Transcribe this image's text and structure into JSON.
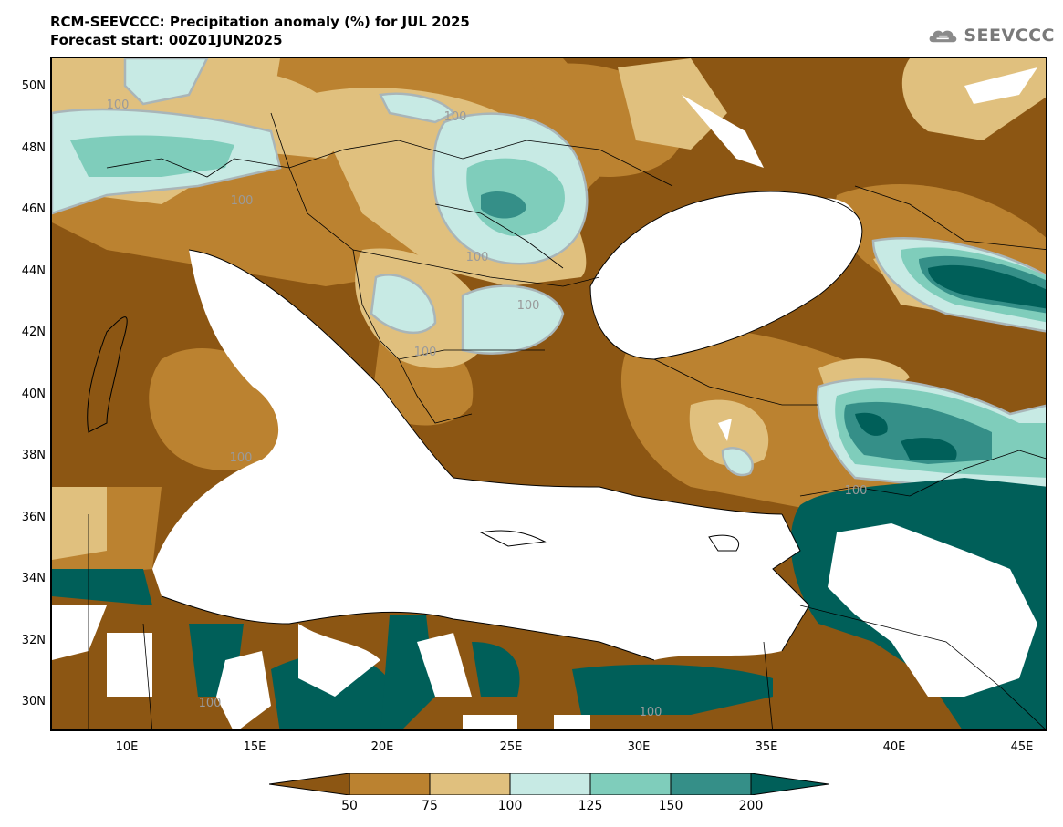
{
  "header": {
    "title": "RCM-SEEVCCC: Precipitation anomaly (%) for JUL 2025",
    "subtitle": "Forecast start: 00Z01JUN2025",
    "logo_text": "SEEVCCC"
  },
  "map": {
    "lat_labels": [
      "50N",
      "48N",
      "46N",
      "44N",
      "42N",
      "40N",
      "38N",
      "36N",
      "34N",
      "32N",
      "30N"
    ],
    "lon_labels": [
      "10E",
      "15E",
      "20E",
      "25E",
      "30E",
      "35E",
      "40E",
      "45E"
    ],
    "contour_label": "100",
    "contour_labels_count": 12
  },
  "legend": {
    "labels": [
      "50",
      "75",
      "100",
      "125",
      "150",
      "200"
    ],
    "colors": {
      "below_50": "#8c5613",
      "50_75": "#bb8230",
      "75_100": "#e0c07e",
      "100_125": "#c7eae4",
      "125_150": "#7fcdbb",
      "150_200": "#358f88",
      "above_200": "#005f59",
      "no_data": "#ffffff"
    }
  }
}
